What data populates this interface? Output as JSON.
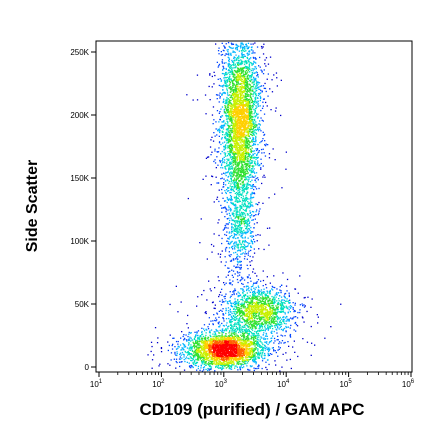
{
  "chart_data": {
    "type": "scatter",
    "style": "flow-cytometry density dot plot",
    "xlabel": "CD109 (purified) / GAM APC",
    "ylabel": "Side Scatter",
    "x_scale": "log",
    "xlim": [
      10,
      1000000
    ],
    "ylim": [
      -5000,
      262144
    ],
    "x_ticks": [
      {
        "value": 10,
        "base": "10",
        "exp": "1"
      },
      {
        "value": 100,
        "base": "10",
        "exp": "2"
      },
      {
        "value": 1000,
        "base": "10",
        "exp": "3"
      },
      {
        "value": 10000,
        "base": "10",
        "exp": "4"
      },
      {
        "value": 100000,
        "base": "10",
        "exp": "5"
      },
      {
        "value": 1000000,
        "base": "10",
        "exp": "6"
      }
    ],
    "y_ticks": [
      {
        "value": 0,
        "label": "0"
      },
      {
        "value": 50000,
        "label": "50K"
      },
      {
        "value": 100000,
        "label": "100K"
      },
      {
        "value": 150000,
        "label": "150K"
      },
      {
        "value": 200000,
        "label": "200K"
      },
      {
        "value": 250000,
        "label": "250K"
      }
    ],
    "populations": [
      {
        "x_center": 1050,
        "y_center": 14000,
        "x_spread_log": 0.32,
        "y_spread": 7000,
        "count": 2600
      },
      {
        "x_center": 3400,
        "y_center": 45000,
        "x_spread_log": 0.28,
        "y_spread": 10000,
        "count": 1500
      },
      {
        "x_center": 1800,
        "y_center": 195000,
        "x_spread_log": 0.15,
        "y_spread": 36000,
        "count": 3600
      },
      {
        "x_center": 1700,
        "y_center": 112000,
        "x_spread_log": 0.13,
        "y_spread": 20000,
        "count": 500
      }
    ],
    "density_colors": [
      "#0000cc",
      "#0044ff",
      "#00b4ff",
      "#00e0c0",
      "#30e030",
      "#c8f000",
      "#ffd000",
      "#ff6000",
      "#ff0000"
    ],
    "grid": false,
    "legend": "none"
  }
}
